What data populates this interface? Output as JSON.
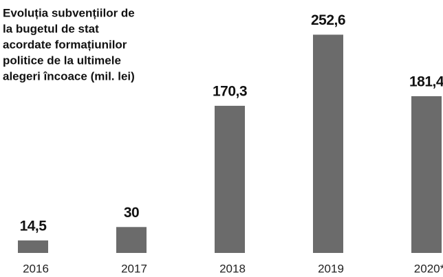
{
  "chart_data": {
    "type": "bar",
    "title": [
      "Evoluția subvențiilor de",
      "la bugetul de stat",
      "acordate formațiunilor",
      "politice de la ultimele",
      "alegeri încoace (mil. lei)"
    ],
    "categories": [
      "2016",
      "2017",
      "2018",
      "2019",
      "2020*"
    ],
    "values": [
      14.5,
      30,
      170.3,
      252.6,
      181.4
    ],
    "value_labels": [
      "14,5",
      "30",
      "170,3",
      "252,6",
      "181,4"
    ],
    "color": "#6b6b6b",
    "ylim": [
      0,
      280
    ]
  }
}
